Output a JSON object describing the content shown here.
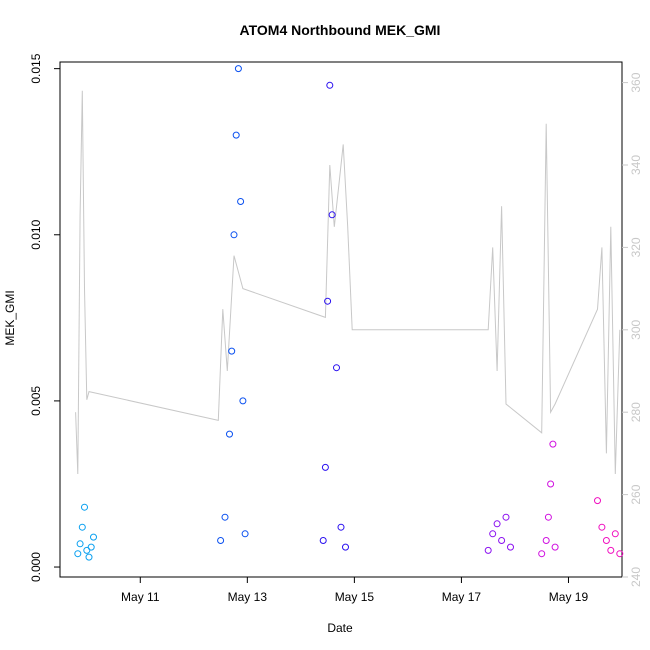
{
  "chart_data": {
    "type": "scatter",
    "title": "ATOM4 Northbound MEK_GMI",
    "xlabel": "Date",
    "ylabel": "MEK_GMI",
    "xlim": [
      "2020-05-09T12:00",
      "2020-05-20T00:00"
    ],
    "ylim": [
      -0.0003,
      0.0152
    ],
    "y2lim": [
      240,
      365
    ],
    "grid": false,
    "legend": "none",
    "x_ticks": [
      {
        "date": "2020-05-11T00:00",
        "label": "May 11"
      },
      {
        "date": "2020-05-13T00:00",
        "label": "May 13"
      },
      {
        "date": "2020-05-15T00:00",
        "label": "May 15"
      },
      {
        "date": "2020-05-17T00:00",
        "label": "May 17"
      },
      {
        "date": "2020-05-19T00:00",
        "label": "May 19"
      }
    ],
    "y_ticks": [
      "0.000",
      "0.005",
      "0.010",
      "0.015"
    ],
    "y2_ticks": [
      "240",
      "260",
      "280",
      "300",
      "320",
      "340",
      "360"
    ],
    "colors": {
      "series_1": "#0aa0f0",
      "series_2": "#0a50f0",
      "series_3": "#2a10f0",
      "series_4": "#8a10f0",
      "series_5": "#d010e0",
      "series_6": "#f010c0",
      "right_axis_line": "#c8c8c8"
    },
    "series": [
      {
        "marker": "open-circle",
        "color": "#0aa0f0",
        "axis": "left",
        "x": [
          "2020-05-09T20:00",
          "2020-05-09T21:00",
          "2020-05-09T22:00",
          "2020-05-09T23:00",
          "2020-05-10T00:00",
          "2020-05-10T01:00",
          "2020-05-10T02:00",
          "2020-05-10T03:00"
        ],
        "y": [
          0.0004,
          0.0007,
          0.0012,
          0.0018,
          0.0005,
          0.0003,
          0.0006,
          0.0009
        ]
      },
      {
        "marker": "open-circle",
        "color": "#0a50f0",
        "axis": "left",
        "x": [
          "2020-05-12T12:00",
          "2020-05-12T14:00",
          "2020-05-12T16:00",
          "2020-05-12T17:00",
          "2020-05-12T18:00",
          "2020-05-12T19:00",
          "2020-05-12T20:00",
          "2020-05-12T21:00",
          "2020-05-12T22:00",
          "2020-05-12T23:00"
        ],
        "y": [
          0.0008,
          0.0015,
          0.004,
          0.0065,
          0.01,
          0.013,
          0.015,
          0.011,
          0.005,
          0.001
        ]
      },
      {
        "marker": "open-circle",
        "color": "#2a10f0",
        "axis": "left",
        "x": [
          "2020-05-14T10:00",
          "2020-05-14T11:00",
          "2020-05-14T12:00",
          "2020-05-14T13:00",
          "2020-05-14T14:00",
          "2020-05-14T16:00",
          "2020-05-14T18:00",
          "2020-05-14T20:00"
        ],
        "y": [
          0.0008,
          0.003,
          0.008,
          0.0145,
          0.0106,
          0.006,
          0.0012,
          0.0006
        ]
      },
      {
        "marker": "open-circle",
        "color": "#8a10f0",
        "axis": "left",
        "x": [
          "2020-05-17T12:00",
          "2020-05-17T14:00",
          "2020-05-17T16:00",
          "2020-05-17T18:00",
          "2020-05-17T20:00",
          "2020-05-17T22:00"
        ],
        "y": [
          0.0005,
          0.001,
          0.0013,
          0.0008,
          0.0015,
          0.0006
        ]
      },
      {
        "marker": "open-circle",
        "color": "#d010e0",
        "axis": "left",
        "x": [
          "2020-05-18T12:00",
          "2020-05-18T14:00",
          "2020-05-18T15:00",
          "2020-05-18T16:00",
          "2020-05-18T17:00",
          "2020-05-18T18:00"
        ],
        "y": [
          0.0004,
          0.0008,
          0.0015,
          0.0025,
          0.0037,
          0.0006
        ]
      },
      {
        "marker": "open-circle",
        "color": "#f010c0",
        "axis": "left",
        "x": [
          "2020-05-19T13:00",
          "2020-05-19T15:00",
          "2020-05-19T17:00",
          "2020-05-19T19:00",
          "2020-05-19T21:00",
          "2020-05-19T23:00"
        ],
        "y": [
          0.002,
          0.0012,
          0.0008,
          0.0005,
          0.001,
          0.0004
        ]
      },
      {
        "type": "line",
        "color": "#c8c8c8",
        "axis": "right",
        "x": [
          "2020-05-09T19:00",
          "2020-05-09T20:00",
          "2020-05-09T21:00",
          "2020-05-09T22:00",
          "2020-05-09T23:00",
          "2020-05-10T00:00",
          "2020-05-10T01:00",
          "2020-05-12T11:00",
          "2020-05-12T13:00",
          "2020-05-12T15:00",
          "2020-05-12T18:00",
          "2020-05-12T22:00",
          "2020-05-14T11:00",
          "2020-05-14T13:00",
          "2020-05-14T15:00",
          "2020-05-14T17:00",
          "2020-05-14T19:00",
          "2020-05-14T21:00",
          "2020-05-14T23:00",
          "2020-05-17T12:00",
          "2020-05-17T14:00",
          "2020-05-17T16:00",
          "2020-05-17T18:00",
          "2020-05-17T20:00",
          "2020-05-18T12:00",
          "2020-05-18T14:00",
          "2020-05-18T16:00",
          "2020-05-18T18:00",
          "2020-05-19T13:00",
          "2020-05-19T15:00",
          "2020-05-19T17:00",
          "2020-05-19T19:00",
          "2020-05-19T21:00",
          "2020-05-19T23:00"
        ],
        "y": [
          280,
          265,
          328,
          358,
          310,
          283,
          285,
          278,
          305,
          290,
          318,
          310,
          303,
          340,
          325,
          335,
          345,
          325,
          300,
          300,
          320,
          290,
          330,
          282,
          275,
          350,
          280,
          282,
          305,
          320,
          270,
          325,
          265,
          300
        ]
      }
    ]
  }
}
